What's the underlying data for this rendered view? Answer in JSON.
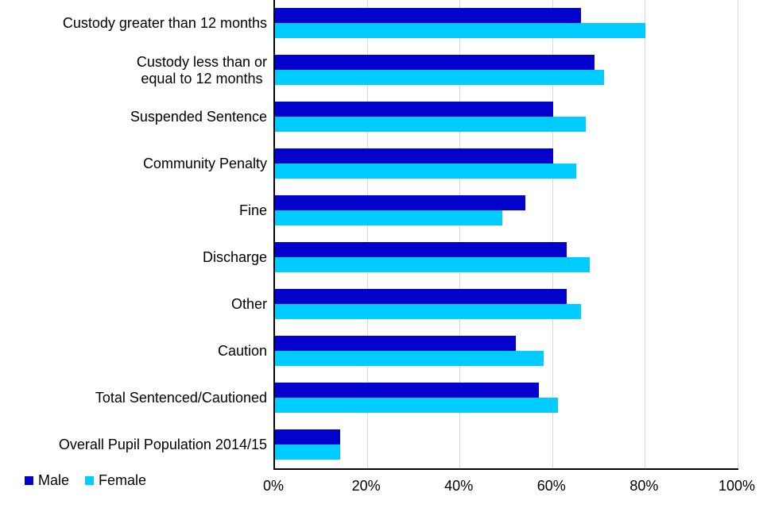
{
  "chart_data": {
    "type": "bar",
    "orientation": "horizontal",
    "title": "",
    "xlabel": "",
    "ylabel": "",
    "xlim": [
      0,
      100
    ],
    "x_ticks": [
      {
        "value": 0,
        "label": "0%"
      },
      {
        "value": 20,
        "label": "20%"
      },
      {
        "value": 40,
        "label": "40%"
      },
      {
        "value": 60,
        "label": "60%"
      },
      {
        "value": 80,
        "label": "80%"
      },
      {
        "value": 100,
        "label": "100%"
      }
    ],
    "grid": "vertical-major",
    "gridline_color": "#d9d9d9",
    "axis_color": "#000000",
    "legend_position": "bottom-left",
    "categories": [
      "Custody greater than 12 months",
      "Custody less than or\nequal to 12 months",
      "Suspended Sentence",
      "Community Penalty",
      "Fine",
      "Discharge",
      "Other",
      "Caution",
      "Total Sentenced/Cautioned",
      "Overall Pupil Population 2014/15"
    ],
    "series": [
      {
        "name": "Male",
        "color": "#0202cc",
        "values": [
          66,
          69,
          60,
          60,
          54,
          63,
          63,
          52,
          57,
          14
        ]
      },
      {
        "name": "Female",
        "color": "#00ccff",
        "values": [
          80,
          71,
          67,
          65,
          49,
          68,
          66,
          58,
          61,
          14
        ]
      }
    ]
  }
}
